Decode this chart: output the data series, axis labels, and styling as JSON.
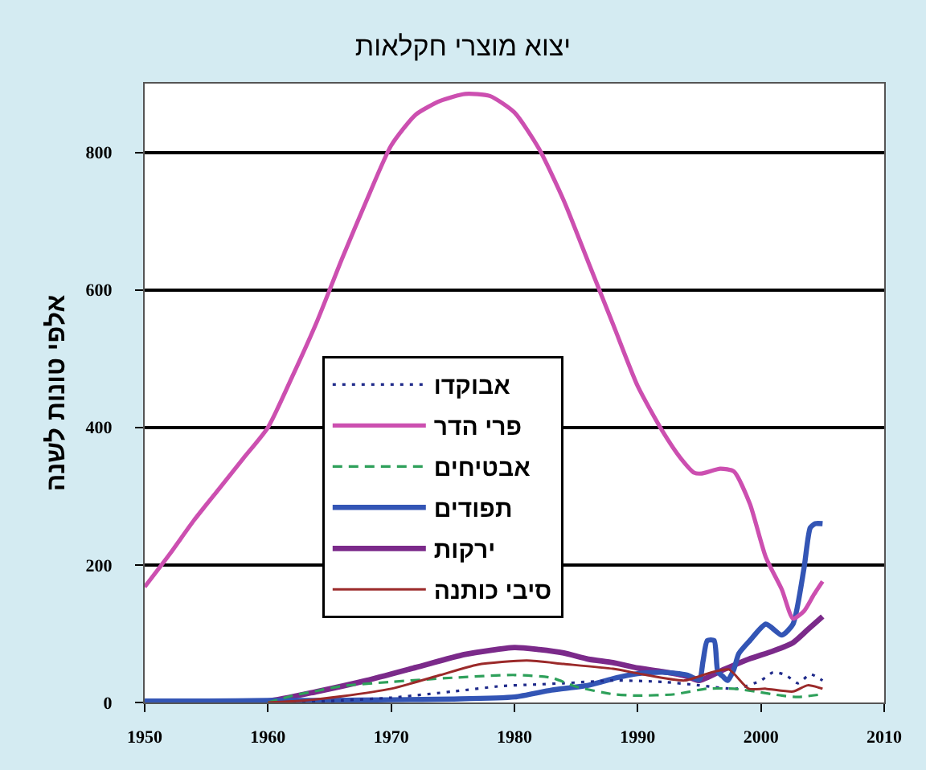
{
  "chart_data": {
    "type": "line",
    "title": "יצוא מוצרי חקלאות",
    "ylabel": "אלפי טונות לשנה",
    "xlim": [
      1950,
      2010
    ],
    "xticks": [
      1950,
      1960,
      1970,
      1980,
      1990,
      2000,
      2010
    ],
    "ylim": [
      0,
      900
    ],
    "yticks": [
      0,
      200,
      400,
      600,
      800
    ],
    "grid": "y",
    "legend": "center",
    "series": [
      {
        "name": "אבוקדו",
        "color": "#1f2a8a",
        "line_style": "dotted",
        "x": [
          1962,
          1966,
          1970,
          1975,
          1979,
          1981.5,
          1984,
          1988,
          1992,
          1995,
          1998,
          2000,
          2001,
          2002,
          2003,
          2004,
          2005
        ],
        "values": [
          0,
          3,
          7,
          16,
          24,
          26,
          28,
          32,
          30,
          25,
          20,
          32,
          44,
          40,
          28,
          41,
          32
        ]
      },
      {
        "name": "פרי הדר",
        "color": "#cc4fb0",
        "line_style": "solid",
        "x": [
          1950,
          1952,
          1954,
          1956,
          1958,
          1960,
          1962,
          1964,
          1966,
          1968,
          1970,
          1972,
          1974,
          1976,
          1978,
          1980,
          1982,
          1984,
          1986,
          1988,
          1990,
          1992,
          1993.5,
          1994.6,
          1995.2,
          1996.7,
          1997.8,
          1999.1,
          2000.4,
          2001.7,
          2002.6,
          2003.5,
          2004.3,
          2005
        ],
        "values": [
          168,
          215,
          265,
          310,
          355,
          400,
          475,
          555,
          645,
          730,
          810,
          855,
          875,
          885,
          882,
          858,
          805,
          730,
          640,
          550,
          460,
          395,
          355,
          334,
          333,
          340,
          336,
          289,
          211,
          164,
          122,
          133,
          157,
          176
        ]
      },
      {
        "name": "אבטיחים",
        "color": "#2ea05a",
        "line_style": "dashed",
        "x": [
          1960,
          1962,
          1964,
          1966,
          1970,
          1975,
          1980,
          1983,
          1985,
          1988,
          1990,
          1993,
          1995.6,
          1997.8,
          1999.5,
          2001.7,
          2003,
          2005
        ],
        "values": [
          0,
          10,
          17,
          24,
          30,
          36,
          40,
          36,
          23,
          12,
          10,
          12,
          20,
          20,
          16,
          10,
          8,
          12
        ]
      },
      {
        "name": "תפודים",
        "color": "#3355b5",
        "line_style": "solid",
        "x": [
          1950,
          1955,
          1960,
          1965,
          1970,
          1975,
          1980,
          1983,
          1986,
          1988.3,
          1990,
          1992,
          1994,
          1995,
          1995.3,
          1995.65,
          1996.2,
          1996.5,
          1996.9,
          1997.3,
          1997.8,
          1998.2,
          1999.1,
          2000.4,
          2001.7,
          2002.6,
          2003.5,
          2004,
          2004.4,
          2005
        ],
        "values": [
          2,
          2,
          3,
          3,
          4,
          5,
          8,
          18,
          25,
          36,
          42,
          44,
          40,
          33,
          60,
          90,
          90,
          45,
          38,
          32,
          48,
          71,
          90,
          114,
          98,
          114,
          196,
          254,
          260,
          260
        ]
      },
      {
        "name": "ירקות",
        "color": "#7b2a8a",
        "line_style": "solid",
        "x": [
          1950,
          1955,
          1960,
          1964,
          1968,
          1972,
          1976,
          1980,
          1982,
          1984,
          1986,
          1988,
          1990,
          1992,
          1994,
          1995,
          1997,
          1999,
          2001,
          2002.6,
          2003.8,
          2005
        ],
        "values": [
          0,
          0,
          2,
          16,
          32,
          51,
          70,
          80,
          77,
          72,
          63,
          58,
          50,
          45,
          38,
          32,
          48,
          63,
          75,
          87,
          106,
          125
        ]
      },
      {
        "name": "סיבי כותנה",
        "color": "#9b2a2a",
        "line_style": "solid",
        "x": [
          1960,
          1963,
          1966,
          1970,
          1974,
          1977,
          1981,
          1984,
          1988,
          1990.4,
          1993.8,
          1996,
          1997.4,
          1999,
          2000.4,
          2002.6,
          2003.8,
          2005
        ],
        "values": [
          0,
          3,
          9,
          20,
          40,
          55,
          61,
          56,
          49,
          41,
          32,
          44,
          48,
          20,
          20,
          16,
          25,
          20
        ]
      }
    ]
  }
}
